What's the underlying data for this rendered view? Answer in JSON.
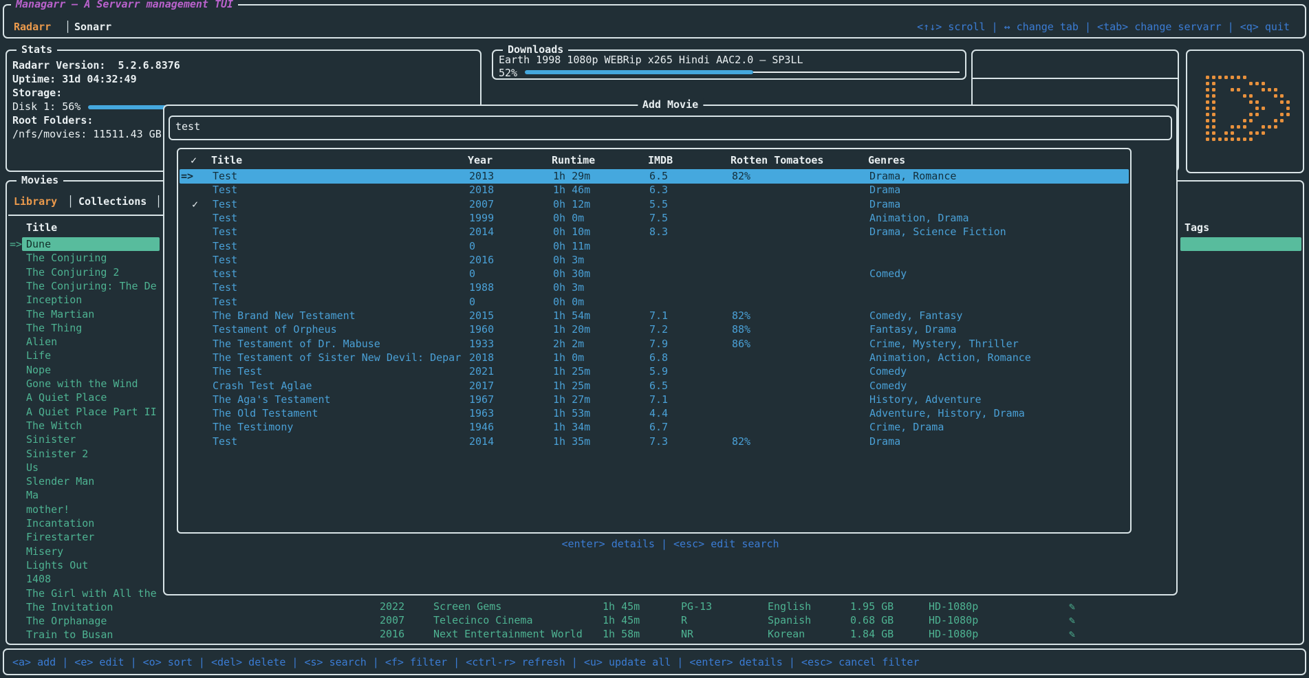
{
  "header": {
    "app_title": "Managarr – A Servarr management TUI",
    "tabs": [
      {
        "label": "Radarr",
        "active": true
      },
      {
        "label": "Sonarr",
        "active": false
      }
    ],
    "tab_separator": "│",
    "hints": "<↑↓> scroll | ↔ change tab | <tab> change servarr | <q> quit"
  },
  "stats": {
    "panel_title": "Stats",
    "version_label": "Radarr Version:",
    "version_value": "5.2.6.8376",
    "uptime_label": "Uptime:",
    "uptime_value": "31d 04:32:49",
    "storage_label": "Storage:",
    "disk_label": "Disk 1: 56%",
    "disk_percent": 56,
    "root_folders_label": "Root Folders:",
    "root_folder_value": "/nfs/movies: 11511.43 GB"
  },
  "downloads": {
    "panel_title": "Downloads",
    "item_title": "Earth 1998 1080p WEBRip x265 Hindi AAC2.0 – SP3LL",
    "percent_label": "52%",
    "percent": 52
  },
  "add_movie": {
    "panel_title": "Add Movie",
    "search_value": "test",
    "hint": "<enter> details | <esc> edit search",
    "selection_arrow": "=>",
    "columns": [
      "✓",
      "Title",
      "Year",
      "Runtime",
      "IMDB",
      "Rotten Tomatoes",
      "Genres"
    ],
    "rows": [
      {
        "checked": "",
        "title": "Test",
        "year": "2013",
        "runtime": "1h 29m",
        "imdb": "6.5",
        "rotten_tomatoes": "82%",
        "genres": "Drama, Romance",
        "selected": true
      },
      {
        "checked": "",
        "title": "Test",
        "year": "2018",
        "runtime": "1h 46m",
        "imdb": "6.3",
        "rotten_tomatoes": "",
        "genres": "Drama",
        "selected": false
      },
      {
        "checked": "✓",
        "title": "Test",
        "year": "2007",
        "runtime": "0h 12m",
        "imdb": "5.5",
        "rotten_tomatoes": "",
        "genres": "Drama",
        "selected": false
      },
      {
        "checked": "",
        "title": "Test",
        "year": "1999",
        "runtime": "0h 0m",
        "imdb": "7.5",
        "rotten_tomatoes": "",
        "genres": "Animation, Drama",
        "selected": false
      },
      {
        "checked": "",
        "title": "Test",
        "year": "2014",
        "runtime": "0h 10m",
        "imdb": "8.3",
        "rotten_tomatoes": "",
        "genres": "Drama, Science Fiction",
        "selected": false
      },
      {
        "checked": "",
        "title": "Test",
        "year": "0",
        "runtime": "0h 11m",
        "imdb": "",
        "rotten_tomatoes": "",
        "genres": "",
        "selected": false
      },
      {
        "checked": "",
        "title": "Test",
        "year": "2016",
        "runtime": "0h 3m",
        "imdb": "",
        "rotten_tomatoes": "",
        "genres": "",
        "selected": false
      },
      {
        "checked": "",
        "title": "test",
        "year": "0",
        "runtime": "0h 30m",
        "imdb": "",
        "rotten_tomatoes": "",
        "genres": "Comedy",
        "selected": false
      },
      {
        "checked": "",
        "title": "Test",
        "year": "1988",
        "runtime": "0h 3m",
        "imdb": "",
        "rotten_tomatoes": "",
        "genres": "",
        "selected": false
      },
      {
        "checked": "",
        "title": "Test",
        "year": "0",
        "runtime": "0h 0m",
        "imdb": "",
        "rotten_tomatoes": "",
        "genres": "",
        "selected": false
      },
      {
        "checked": "",
        "title": "The Brand New Testament",
        "year": "2015",
        "runtime": "1h 54m",
        "imdb": "7.1",
        "rotten_tomatoes": "82%",
        "genres": "Comedy, Fantasy",
        "selected": false
      },
      {
        "checked": "",
        "title": "Testament of Orpheus",
        "year": "1960",
        "runtime": "1h 20m",
        "imdb": "7.2",
        "rotten_tomatoes": "88%",
        "genres": "Fantasy, Drama",
        "selected": false
      },
      {
        "checked": "",
        "title": "The Testament of Dr. Mabuse",
        "year": "1933",
        "runtime": "2h 2m",
        "imdb": "7.9",
        "rotten_tomatoes": "86%",
        "genres": "Crime, Mystery, Thriller",
        "selected": false
      },
      {
        "checked": "",
        "title": "The Testament of Sister New Devil: Depar",
        "year": "2018",
        "runtime": "1h 0m",
        "imdb": "6.8",
        "rotten_tomatoes": "",
        "genres": "Animation, Action, Romance",
        "selected": false
      },
      {
        "checked": "",
        "title": "The Test",
        "year": "2021",
        "runtime": "1h 25m",
        "imdb": "5.9",
        "rotten_tomatoes": "",
        "genres": "Comedy",
        "selected": false
      },
      {
        "checked": "",
        "title": "Crash Test Aglae",
        "year": "2017",
        "runtime": "1h 25m",
        "imdb": "6.5",
        "rotten_tomatoes": "",
        "genres": "Comedy",
        "selected": false
      },
      {
        "checked": "",
        "title": "The Aga's Testament",
        "year": "1967",
        "runtime": "1h 27m",
        "imdb": "7.1",
        "rotten_tomatoes": "",
        "genres": "History, Adventure",
        "selected": false
      },
      {
        "checked": "",
        "title": "The Old Testament",
        "year": "1963",
        "runtime": "1h 53m",
        "imdb": "4.4",
        "rotten_tomatoes": "",
        "genres": "Adventure, History, Drama",
        "selected": false
      },
      {
        "checked": "",
        "title": "The Testimony",
        "year": "1946",
        "runtime": "1h 34m",
        "imdb": "6.7",
        "rotten_tomatoes": "",
        "genres": "Crime, Drama",
        "selected": false
      },
      {
        "checked": "",
        "title": "Test",
        "year": "2014",
        "runtime": "1h 35m",
        "imdb": "7.3",
        "rotten_tomatoes": "82%",
        "genres": "Drama",
        "selected": false
      }
    ]
  },
  "library": {
    "panel_title": "Movies",
    "tabs": [
      {
        "label": "Library",
        "active": true
      },
      {
        "label": "Collections",
        "active": false
      }
    ],
    "tab_separator": "│",
    "title_column": "Title",
    "tags_column": "Tags",
    "selection_arrow": "=>",
    "selected_index": 0,
    "items": [
      "Dune",
      "The Conjuring",
      "The Conjuring 2",
      "The Conjuring: The De",
      "Inception",
      "The Martian",
      "The Thing",
      "Alien",
      "Life",
      "Nope",
      "Gone with the Wind",
      "A Quiet Place",
      "A Quiet Place Part II",
      "The Witch",
      "Sinister",
      "Sinister 2",
      "Us",
      "Slender Man",
      "Ma",
      "mother!",
      "Incantation",
      "Firestarter",
      "Misery",
      "Lights Out",
      "1408",
      "The Girl with All the",
      "The Invitation",
      "The Orphanage",
      "Train to Busan"
    ],
    "details": [
      {
        "row_index": 26,
        "year": "2022",
        "studio": "Screen Gems",
        "runtime": "1h 45m",
        "certification": "PG-13",
        "language": "English",
        "size": "1.95 GB",
        "quality": "HD-1080p",
        "tag_icon": "✎"
      },
      {
        "row_index": 27,
        "year": "2007",
        "studio": "Telecinco Cinema",
        "runtime": "1h 45m",
        "certification": "R",
        "language": "Spanish",
        "size": "0.68 GB",
        "quality": "HD-1080p",
        "tag_icon": "✎"
      },
      {
        "row_index": 28,
        "year": "2016",
        "studio": "Next Entertainment World",
        "runtime": "1h 58m",
        "certification": "NR",
        "language": "Korean",
        "size": "1.84 GB",
        "quality": "HD-1080p",
        "tag_icon": "✎"
      }
    ]
  },
  "bottom_bar": {
    "hints": "<a> add | <e> edit | <o> sort | <del> delete | <s> search | <f> filter | <ctrl-r> refresh | <u> update all | <enter> details | <esc> cancel filter"
  },
  "colors": {
    "background": "#212f36",
    "border": "#d9e4e7",
    "accent_orange": "#eb9a4c",
    "accent_magenta": "#ba62cd",
    "hint_blue": "#3b7cd4",
    "data_blue": "#4aa0d6",
    "selection_blue": "#45a8de",
    "teal": "#4eb392",
    "selection_teal": "#58bc9d",
    "logo_orange": "#e8913d"
  }
}
